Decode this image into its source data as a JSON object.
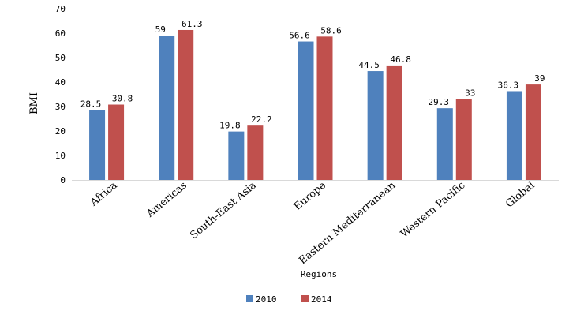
{
  "chart_data": {
    "type": "bar",
    "xlabel": "Regions",
    "ylabel": "BMI",
    "ylim": [
      0,
      70
    ],
    "yticks": [
      "0",
      "10",
      "20",
      "30",
      "40",
      "50",
      "60",
      "70"
    ],
    "grid": false,
    "legend_position": "bottom",
    "categories": [
      "Africa",
      "Americas",
      "South-East Asia",
      "Europe",
      "Eastern Mediterranean",
      "Western Pacific",
      "Global"
    ],
    "series": [
      {
        "name": "2010",
        "color": "#4f81bd",
        "values": [
          28.5,
          59,
          19.8,
          56.6,
          44.5,
          29.3,
          36.3
        ],
        "labels": [
          "28.5",
          "59",
          "19.8",
          "56.6",
          "44.5",
          "29.3",
          "36.3"
        ]
      },
      {
        "name": "2014",
        "color": "#c0504d",
        "values": [
          30.8,
          61.3,
          22.2,
          58.6,
          46.8,
          33,
          39
        ],
        "labels": [
          "30.8",
          "61.3",
          "22.2",
          "58.6",
          "46.8",
          "33",
          "39"
        ]
      }
    ]
  }
}
